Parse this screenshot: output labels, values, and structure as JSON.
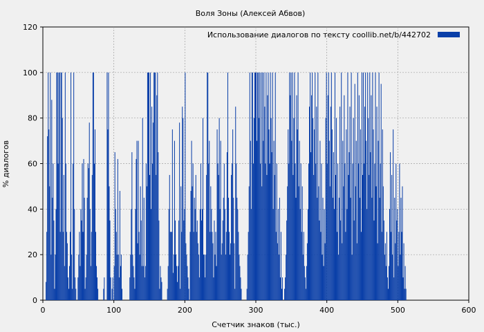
{
  "chart_data": {
    "type": "bar",
    "title": "Воля Зоны (Алексей Абвов)",
    "xlabel": "Счетчик знаков (тыс.)",
    "ylabel": "% диалогов",
    "xlim": [
      0,
      600
    ],
    "ylim": [
      0,
      120
    ],
    "xticks": [
      0,
      100,
      200,
      300,
      400,
      500,
      600
    ],
    "yticks": [
      0,
      20,
      40,
      60,
      80,
      100,
      120
    ],
    "grid": true,
    "legend_position": "top-right",
    "colors": {
      "bars": "#0a3fa8",
      "background": "#f0f0f0",
      "grid": "#a0a0a0"
    },
    "series": [
      {
        "name": "Использование диалогов по тексту  coollib.net/b/442702",
        "x_step": 1,
        "values": [
          0,
          0,
          0,
          0,
          8,
          30,
          72,
          100,
          75,
          50,
          100,
          20,
          88,
          45,
          60,
          35,
          5,
          20,
          40,
          100,
          100,
          60,
          100,
          100,
          30,
          100,
          100,
          80,
          30,
          55,
          15,
          100,
          60,
          30,
          25,
          10,
          5,
          15,
          30,
          100,
          20,
          5,
          60,
          100,
          40,
          10,
          5,
          0,
          0,
          10,
          20,
          30,
          15,
          40,
          35,
          60,
          30,
          62,
          45,
          5,
          10,
          20,
          45,
          60,
          58,
          78,
          40,
          15,
          30,
          55,
          100,
          100,
          60,
          75,
          30,
          15,
          10,
          5,
          0,
          0,
          0,
          0,
          0,
          0,
          0,
          5,
          10,
          0,
          0,
          0,
          100,
          75,
          100,
          50,
          35,
          10,
          0,
          5,
          10,
          0,
          15,
          65,
          40,
          30,
          20,
          62,
          20,
          10,
          48,
          15,
          20,
          5,
          0,
          0,
          0,
          0,
          0,
          0,
          0,
          0,
          0,
          0,
          10,
          20,
          40,
          65,
          20,
          15,
          10,
          5,
          40,
          62,
          70,
          25,
          70,
          30,
          20,
          50,
          35,
          15,
          80,
          15,
          45,
          10,
          15,
          60,
          50,
          100,
          100,
          100,
          55,
          100,
          40,
          85,
          60,
          78,
          100,
          100,
          100,
          55,
          90,
          100,
          65,
          35,
          5,
          15,
          10,
          8,
          0,
          0,
          0,
          0,
          0,
          0,
          0,
          5,
          15,
          40,
          55,
          30,
          30,
          30,
          75,
          12,
          20,
          70,
          35,
          20,
          15,
          8,
          15,
          35,
          78,
          5,
          50,
          30,
          85,
          80,
          35,
          40,
          100,
          25,
          20,
          15,
          10,
          5,
          0,
          30,
          48,
          70,
          50,
          60,
          30,
          45,
          40,
          55,
          30,
          35,
          25,
          20,
          10,
          40,
          60,
          35,
          40,
          80,
          20,
          20,
          10,
          20,
          55,
          100,
          100,
          60,
          70,
          30,
          50,
          40,
          30,
          25,
          10,
          35,
          20,
          30,
          15,
          75,
          60,
          55,
          80,
          40,
          70,
          20,
          25,
          35,
          45,
          60,
          40,
          20,
          30,
          65,
          100,
          45,
          30,
          20,
          25,
          55,
          60,
          75,
          45,
          25,
          5,
          85,
          60,
          45,
          40,
          30,
          20,
          15,
          10,
          5,
          0,
          0,
          0,
          0,
          0,
          0,
          0,
          5,
          20,
          30,
          50,
          100,
          70,
          40,
          100,
          100,
          60,
          80,
          100,
          100,
          100,
          70,
          100,
          100,
          80,
          100,
          60,
          100,
          50,
          100,
          70,
          100,
          85,
          60,
          100,
          55,
          90,
          100,
          75,
          60,
          100,
          80,
          65,
          100,
          40,
          70,
          55,
          100,
          30,
          60,
          25,
          40,
          20,
          45,
          10,
          30,
          5,
          10,
          0,
          0,
          5,
          10,
          20,
          35,
          50,
          75,
          60,
          100,
          90,
          100,
          70,
          100,
          55,
          80,
          100,
          60,
          45,
          90,
          75,
          100,
          50,
          70,
          40,
          60,
          30,
          50,
          20,
          30,
          15,
          10,
          5,
          15,
          25,
          40,
          60,
          85,
          100,
          65,
          90,
          100,
          80,
          55,
          75,
          100,
          60,
          85,
          45,
          100,
          50,
          35,
          70,
          30,
          60,
          20,
          45,
          15,
          40,
          25,
          80,
          100,
          60,
          90,
          100,
          70,
          50,
          85,
          100,
          75,
          45,
          65,
          40,
          100,
          55,
          80,
          30,
          60,
          20,
          45,
          85,
          35,
          100,
          25,
          70,
          50,
          90,
          60,
          30,
          75,
          40,
          100,
          55,
          65,
          85,
          45,
          100,
          20,
          60,
          80,
          35,
          95,
          50,
          70,
          25,
          100,
          60,
          90,
          45,
          75,
          30,
          100,
          55,
          100,
          60,
          85,
          100,
          70,
          40,
          100,
          80,
          55,
          100,
          65,
          90,
          45,
          100,
          75,
          35,
          60,
          100,
          50,
          85,
          25,
          70,
          100,
          45,
          60,
          95,
          30,
          75,
          50,
          35,
          20,
          25,
          15,
          30,
          10,
          5,
          15,
          40,
          65,
          30,
          55,
          20,
          75,
          10,
          45,
          25,
          60,
          35,
          40,
          15,
          30,
          60,
          20,
          45,
          30,
          50,
          10,
          25,
          5,
          15,
          5,
          0,
          0,
          0,
          0,
          0,
          0,
          0,
          0,
          0,
          0,
          0,
          0,
          0,
          0,
          0,
          0,
          0,
          0,
          0,
          0,
          0,
          0,
          0,
          0,
          0,
          0,
          0,
          0,
          0,
          0,
          0,
          0,
          0,
          0,
          0,
          0,
          0,
          0,
          0,
          0,
          0,
          0,
          0,
          0,
          0,
          0,
          0,
          0,
          0,
          0,
          0,
          0,
          0,
          0,
          0,
          0,
          0,
          0,
          0,
          0,
          0,
          0,
          0,
          0,
          0,
          0,
          0,
          0,
          0,
          0,
          0,
          0,
          0,
          0,
          0,
          0,
          0,
          0,
          0,
          0,
          0,
          0,
          0,
          0,
          0,
          0,
          0,
          0
        ]
      }
    ]
  }
}
